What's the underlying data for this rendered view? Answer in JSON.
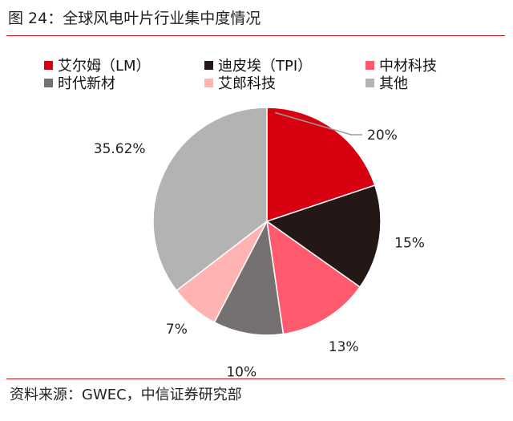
{
  "figure": {
    "title": "图 24：全球风电叶片行业集中度情况",
    "source": "资料来源：GWEC，中信证券研究部"
  },
  "chart_data": {
    "type": "pie",
    "title": "",
    "legend_position": "top",
    "slices": [
      {
        "name": "艾尔姆（LM）",
        "value": 20,
        "label": "20%",
        "color": "#d7000f"
      },
      {
        "name": "迪皮埃（TPI）",
        "value": 15,
        "label": "15%",
        "color": "#231815"
      },
      {
        "name": "中材科技",
        "value": 13,
        "label": "13%",
        "color": "#ff5a6e"
      },
      {
        "name": "时代新材",
        "value": 10,
        "label": "10%",
        "color": "#767171"
      },
      {
        "name": "艾郎科技",
        "value": 7,
        "label": "7%",
        "color": "#ffb3b3"
      },
      {
        "name": "其他",
        "value": 35.62,
        "label": "35.62%",
        "color": "#b3b3b3"
      }
    ]
  }
}
